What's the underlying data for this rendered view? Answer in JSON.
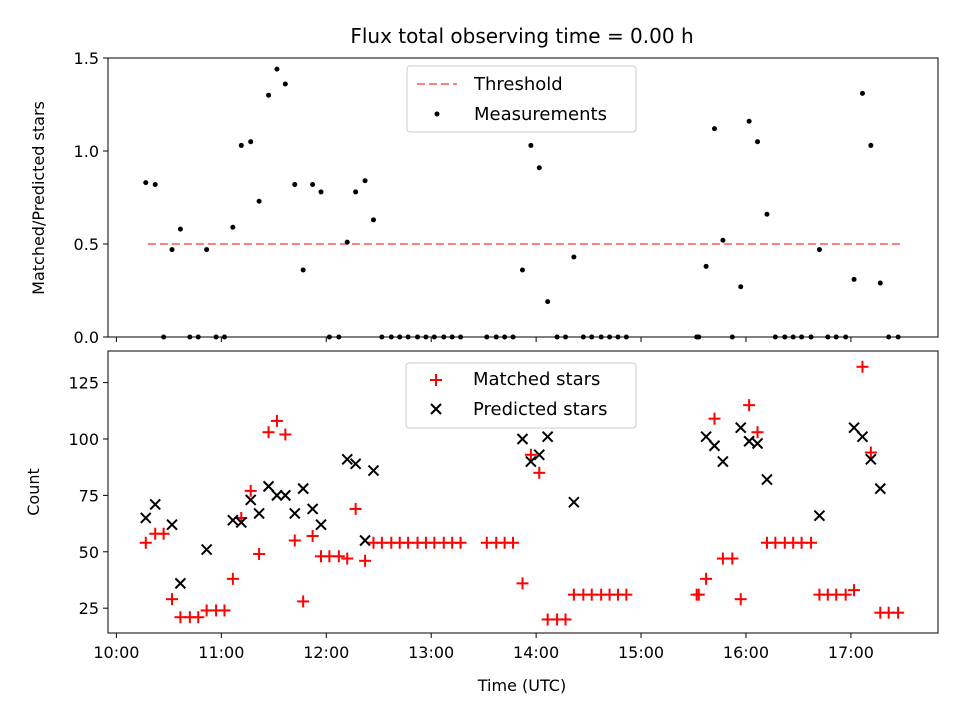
{
  "chart_data": [
    {
      "type": "scatter",
      "title": "Flux total observing time = 0.00 h",
      "xlabel": "",
      "ylabel": "Matched/Predicted stars",
      "xlim": [
        9.92,
        17.83
      ],
      "ylim": [
        0,
        1.5
      ],
      "yticks": [
        "0.0",
        "0.5",
        "1.0",
        "1.5"
      ],
      "legend": "upper-center",
      "threshold": {
        "name": "Threshold",
        "value": 0.5,
        "x": [
          10.3,
          17.5
        ],
        "color": "#ff7f7f"
      },
      "series": [
        {
          "name": "Measurements",
          "color": "#000000",
          "points": [
            [
              10.28,
              0.83
            ],
            [
              10.37,
              0.82
            ],
            [
              10.45,
              0.0
            ],
            [
              10.53,
              0.47
            ],
            [
              10.61,
              0.58
            ],
            [
              10.7,
              0.0
            ],
            [
              10.78,
              0.0
            ],
            [
              10.86,
              0.47
            ],
            [
              10.95,
              0.0
            ],
            [
              11.03,
              0.0
            ],
            [
              11.11,
              0.59
            ],
            [
              11.19,
              1.03
            ],
            [
              11.28,
              1.05
            ],
            [
              11.36,
              0.73
            ],
            [
              11.45,
              1.3
            ],
            [
              11.53,
              1.44
            ],
            [
              11.61,
              1.36
            ],
            [
              11.7,
              0.82
            ],
            [
              11.78,
              0.36
            ],
            [
              11.87,
              0.82
            ],
            [
              11.95,
              0.78
            ],
            [
              12.03,
              0.0
            ],
            [
              12.12,
              0.0
            ],
            [
              12.2,
              0.51
            ],
            [
              12.28,
              0.78
            ],
            [
              12.37,
              0.84
            ],
            [
              12.45,
              0.63
            ],
            [
              12.53,
              0.0
            ],
            [
              12.62,
              0.0
            ],
            [
              12.7,
              0.0
            ],
            [
              12.78,
              0.0
            ],
            [
              12.87,
              0.0
            ],
            [
              12.95,
              0.0
            ],
            [
              13.03,
              0.0
            ],
            [
              13.12,
              0.0
            ],
            [
              13.2,
              0.0
            ],
            [
              13.28,
              0.0
            ],
            [
              13.53,
              0.0
            ],
            [
              13.62,
              0.0
            ],
            [
              13.7,
              0.0
            ],
            [
              13.78,
              0.0
            ],
            [
              13.87,
              0.36
            ],
            [
              13.95,
              1.03
            ],
            [
              14.03,
              0.91
            ],
            [
              14.11,
              0.19
            ],
            [
              14.2,
              0.0
            ],
            [
              14.28,
              0.0
            ],
            [
              14.36,
              0.43
            ],
            [
              14.45,
              0.0
            ],
            [
              14.53,
              0.0
            ],
            [
              14.62,
              0.0
            ],
            [
              14.7,
              0.0
            ],
            [
              14.78,
              0.0
            ],
            [
              14.86,
              0.0
            ],
            [
              15.53,
              0.0
            ],
            [
              15.55,
              0.0
            ],
            [
              15.62,
              0.38
            ],
            [
              15.7,
              1.12
            ],
            [
              15.78,
              0.52
            ],
            [
              15.87,
              0.0
            ],
            [
              15.95,
              0.27
            ],
            [
              16.03,
              1.16
            ],
            [
              16.11,
              1.05
            ],
            [
              16.2,
              0.66
            ],
            [
              16.28,
              0.0
            ],
            [
              16.37,
              0.0
            ],
            [
              16.45,
              0.0
            ],
            [
              16.53,
              0.0
            ],
            [
              16.62,
              0.0
            ],
            [
              16.7,
              0.47
            ],
            [
              16.78,
              0.0
            ],
            [
              16.86,
              0.0
            ],
            [
              16.95,
              0.0
            ],
            [
              17.03,
              0.31
            ],
            [
              17.11,
              1.31
            ],
            [
              17.19,
              1.03
            ],
            [
              17.28,
              0.29
            ],
            [
              17.36,
              0.0
            ],
            [
              17.45,
              0.0
            ]
          ]
        }
      ]
    },
    {
      "type": "scatter",
      "title": "",
      "xlabel": "Time (UTC)",
      "ylabel": "Count",
      "xlim": [
        9.92,
        17.83
      ],
      "ylim": [
        14,
        139
      ],
      "yticks": [
        "25",
        "50",
        "75",
        "100",
        "125"
      ],
      "xticks": [
        "10:00",
        "11:00",
        "12:00",
        "13:00",
        "14:00",
        "15:00",
        "16:00",
        "17:00"
      ],
      "legend": "upper-center",
      "series": [
        {
          "name": "Matched stars",
          "marker": "plus",
          "color": "#ff0000",
          "points": [
            [
              10.28,
              54
            ],
            [
              10.37,
              58
            ],
            [
              10.45,
              58
            ],
            [
              10.53,
              29
            ],
            [
              10.61,
              21
            ],
            [
              10.7,
              21
            ],
            [
              10.78,
              21
            ],
            [
              10.86,
              24
            ],
            [
              10.95,
              24
            ],
            [
              11.03,
              24
            ],
            [
              11.11,
              38
            ],
            [
              11.19,
              65
            ],
            [
              11.28,
              77
            ],
            [
              11.36,
              49
            ],
            [
              11.45,
              103
            ],
            [
              11.53,
              108
            ],
            [
              11.61,
              102
            ],
            [
              11.7,
              55
            ],
            [
              11.78,
              28
            ],
            [
              11.87,
              57
            ],
            [
              11.95,
              48
            ],
            [
              12.03,
              48
            ],
            [
              12.12,
              48
            ],
            [
              12.2,
              47
            ],
            [
              12.28,
              69
            ],
            [
              12.37,
              46
            ],
            [
              12.45,
              54
            ],
            [
              12.53,
              54
            ],
            [
              12.62,
              54
            ],
            [
              12.7,
              54
            ],
            [
              12.78,
              54
            ],
            [
              12.87,
              54
            ],
            [
              12.95,
              54
            ],
            [
              13.03,
              54
            ],
            [
              13.12,
              54
            ],
            [
              13.2,
              54
            ],
            [
              13.28,
              54
            ],
            [
              13.53,
              54
            ],
            [
              13.62,
              54
            ],
            [
              13.7,
              54
            ],
            [
              13.78,
              54
            ],
            [
              13.87,
              36
            ],
            [
              13.95,
              93
            ],
            [
              14.03,
              85
            ],
            [
              14.11,
              20
            ],
            [
              14.2,
              20
            ],
            [
              14.28,
              20
            ],
            [
              14.36,
              31
            ],
            [
              14.45,
              31
            ],
            [
              14.53,
              31
            ],
            [
              14.62,
              31
            ],
            [
              14.7,
              31
            ],
            [
              14.78,
              31
            ],
            [
              14.86,
              31
            ],
            [
              15.53,
              31
            ],
            [
              15.55,
              31
            ],
            [
              15.62,
              38
            ],
            [
              15.7,
              109
            ],
            [
              15.78,
              47
            ],
            [
              15.87,
              47
            ],
            [
              15.95,
              29
            ],
            [
              16.03,
              115
            ],
            [
              16.11,
              103
            ],
            [
              16.2,
              54
            ],
            [
              16.28,
              54
            ],
            [
              16.37,
              54
            ],
            [
              16.45,
              54
            ],
            [
              16.53,
              54
            ],
            [
              16.62,
              54
            ],
            [
              16.7,
              31
            ],
            [
              16.78,
              31
            ],
            [
              16.86,
              31
            ],
            [
              16.95,
              31
            ],
            [
              17.03,
              33
            ],
            [
              17.11,
              132
            ],
            [
              17.19,
              94
            ],
            [
              17.28,
              23
            ],
            [
              17.36,
              23
            ],
            [
              17.45,
              23
            ]
          ]
        },
        {
          "name": "Predicted stars",
          "marker": "x",
          "color": "#000000",
          "points": [
            [
              10.28,
              65
            ],
            [
              10.37,
              71
            ],
            [
              10.53,
              62
            ],
            [
              10.61,
              36
            ],
            [
              10.86,
              51
            ],
            [
              11.11,
              64
            ],
            [
              11.19,
              63
            ],
            [
              11.28,
              73
            ],
            [
              11.36,
              67
            ],
            [
              11.45,
              79
            ],
            [
              11.53,
              75
            ],
            [
              11.61,
              75
            ],
            [
              11.7,
              67
            ],
            [
              11.78,
              78
            ],
            [
              11.87,
              69
            ],
            [
              11.95,
              62
            ],
            [
              12.2,
              91
            ],
            [
              12.28,
              89
            ],
            [
              12.37,
              55
            ],
            [
              12.45,
              86
            ],
            [
              13.87,
              100
            ],
            [
              13.95,
              90
            ],
            [
              14.03,
              93
            ],
            [
              14.11,
              101
            ],
            [
              14.36,
              72
            ],
            [
              15.62,
              101
            ],
            [
              15.7,
              97
            ],
            [
              15.78,
              90
            ],
            [
              15.95,
              105
            ],
            [
              16.03,
              99
            ],
            [
              16.11,
              98
            ],
            [
              16.2,
              82
            ],
            [
              16.7,
              66
            ],
            [
              17.03,
              105
            ],
            [
              17.11,
              101
            ],
            [
              17.19,
              91
            ],
            [
              17.28,
              78
            ]
          ]
        }
      ]
    }
  ]
}
